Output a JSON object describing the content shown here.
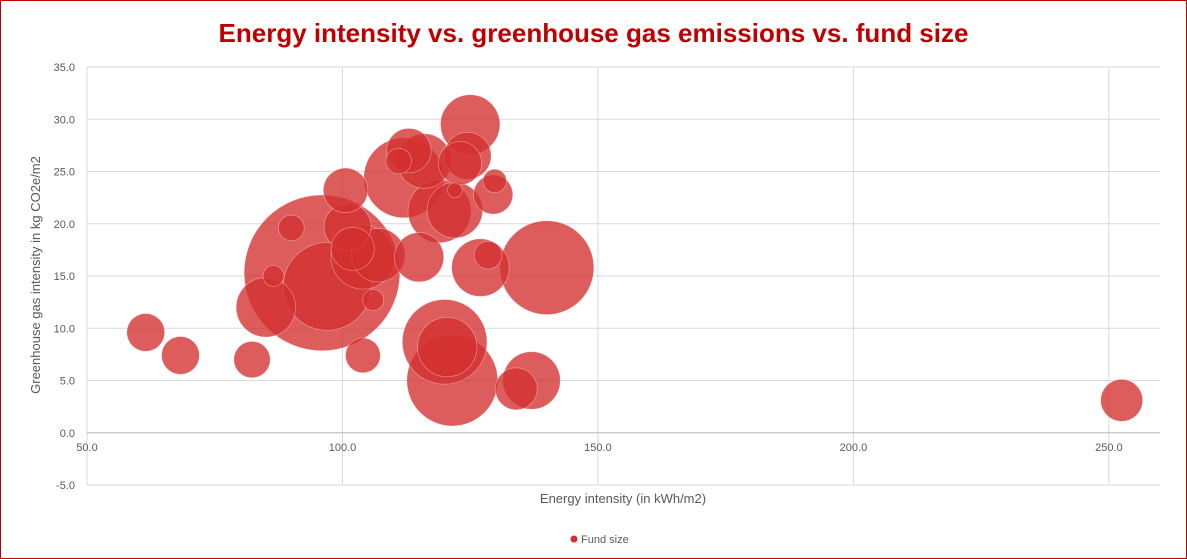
{
  "chart_data": {
    "type": "bubble",
    "title": "Energy intensity vs. greenhouse gas emissions vs. fund size",
    "xlabel": "Energy intensity (in kWh/m2)",
    "ylabel": "Greenhouse gas intensity in kg CO2e/m2",
    "xlim": [
      50,
      260
    ],
    "ylim": [
      -5,
      35
    ],
    "x_ticks": [
      "50.0",
      "100.0",
      "150.0",
      "200.0",
      "250.0"
    ],
    "y_ticks": [
      "-5.0",
      "0.0",
      "5.0",
      "10.0",
      "15.0",
      "20.0",
      "25.0",
      "30.0",
      "35.0"
    ],
    "grid": true,
    "legend": "bottom",
    "series": [
      {
        "name": "Fund size",
        "color": "#d32f2f",
        "points": [
          {
            "x": 61.5,
            "y": 9.6,
            "size": 1.3
          },
          {
            "x": 68.3,
            "y": 7.4,
            "size": 1.3
          },
          {
            "x": 82.3,
            "y": 7.0,
            "size": 1.2
          },
          {
            "x": 85.0,
            "y": 12.0,
            "size": 3.2
          },
          {
            "x": 86.5,
            "y": 15.0,
            "size": 0.4
          },
          {
            "x": 90.0,
            "y": 19.6,
            "size": 0.6
          },
          {
            "x": 96.0,
            "y": 15.3,
            "size": 22.0
          },
          {
            "x": 97.0,
            "y": 14.0,
            "size": 7.0
          },
          {
            "x": 100.6,
            "y": 23.2,
            "size": 1.8
          },
          {
            "x": 101.0,
            "y": 19.7,
            "size": 2.0
          },
          {
            "x": 102.0,
            "y": 17.6,
            "size": 1.7
          },
          {
            "x": 104.0,
            "y": 16.8,
            "size": 3.7
          },
          {
            "x": 104.0,
            "y": 7.4,
            "size": 1.1
          },
          {
            "x": 106.0,
            "y": 12.7,
            "size": 0.4
          },
          {
            "x": 107.0,
            "y": 17.0,
            "size": 2.6
          },
          {
            "x": 111.0,
            "y": 26.0,
            "size": 0.6
          },
          {
            "x": 112.0,
            "y": 24.4,
            "size": 5.8
          },
          {
            "x": 113.0,
            "y": 27.0,
            "size": 1.8
          },
          {
            "x": 115.0,
            "y": 16.8,
            "size": 2.2
          },
          {
            "x": 116.0,
            "y": 26.0,
            "size": 2.7
          },
          {
            "x": 119.0,
            "y": 21.2,
            "size": 3.6
          },
          {
            "x": 120.0,
            "y": 8.7,
            "size": 6.5
          },
          {
            "x": 120.5,
            "y": 8.2,
            "size": 3.2
          },
          {
            "x": 121.5,
            "y": 5.0,
            "size": 7.5
          },
          {
            "x": 122.0,
            "y": 21.3,
            "size": 2.8
          },
          {
            "x": 122.0,
            "y": 23.2,
            "size": 0.2
          },
          {
            "x": 123.0,
            "y": 25.8,
            "size": 1.7
          },
          {
            "x": 124.5,
            "y": 26.5,
            "size": 2.0
          },
          {
            "x": 125.0,
            "y": 29.5,
            "size": 3.2
          },
          {
            "x": 127.0,
            "y": 15.8,
            "size": 3.0
          },
          {
            "x": 128.5,
            "y": 17.0,
            "size": 0.7
          },
          {
            "x": 129.5,
            "y": 22.8,
            "size": 1.4
          },
          {
            "x": 129.8,
            "y": 24.1,
            "size": 0.5
          },
          {
            "x": 134.0,
            "y": 4.2,
            "size": 1.6
          },
          {
            "x": 137.0,
            "y": 5.0,
            "size": 3.0
          },
          {
            "x": 140.0,
            "y": 15.8,
            "size": 8.0
          },
          {
            "x": 252.5,
            "y": 3.1,
            "size": 1.6
          }
        ]
      }
    ]
  }
}
